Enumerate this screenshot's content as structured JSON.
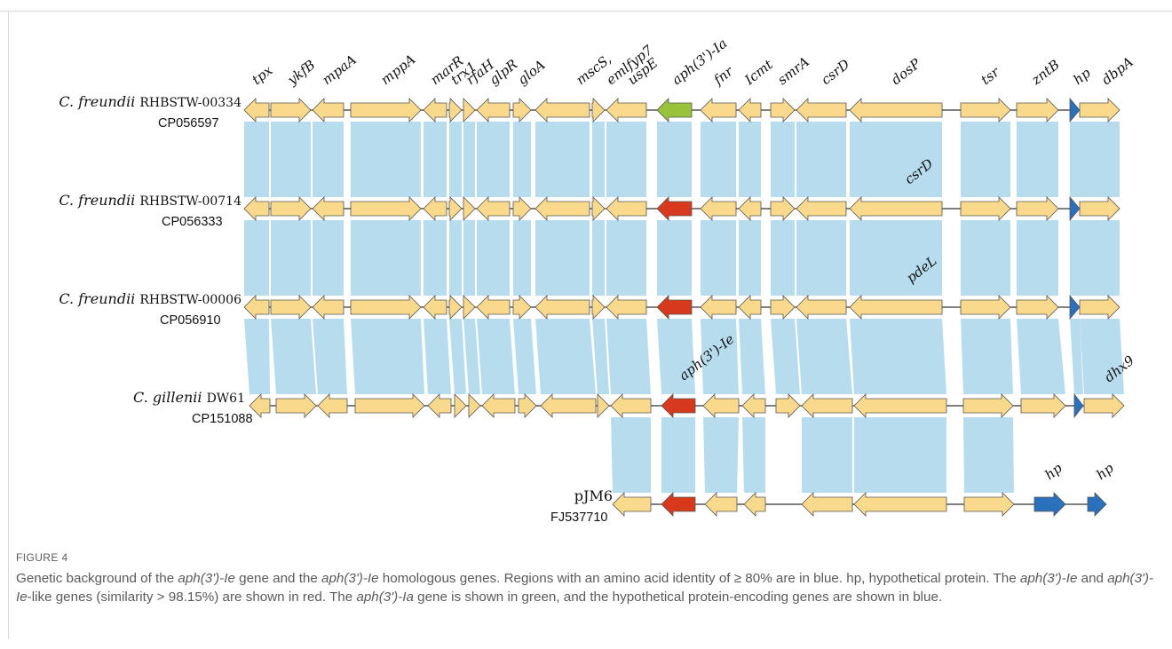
{
  "colors": {
    "gene": "#f9d98b",
    "gene_stroke": "#555555",
    "green": "#97c23a",
    "red": "#d7391c",
    "blue": "#2b70bd",
    "band": "#b7dcee"
  },
  "tracks": [
    {
      "species": "C. freundii",
      "strain": "RHBSTW-00334",
      "accession": "CP056597"
    },
    {
      "species": "C. freundii",
      "strain": "RHBSTW-00714",
      "accession": "CP056333"
    },
    {
      "species": "C. freundii",
      "strain": "RHBSTW-00006",
      "accession": "CP056910"
    },
    {
      "species": "C. gillenii",
      "strain": "DW61",
      "accession": "CP151088"
    },
    {
      "species": "",
      "strain": "pJM6",
      "accession": "FJ537710"
    }
  ],
  "gene_labels": {
    "tpx": "tpx",
    "ykfB": "ykfB",
    "mpaA": "mpaA",
    "mppA": "mppA",
    "marR": "marR",
    "trx1": "trx1",
    "rfaH": "rfaH",
    "glpR": "glpR",
    "gloA": "gloA",
    "mscS": "mscS,",
    "emlfyp7": "emlfyp7",
    "uspE": "uspE",
    "aph_ia": "aph(3')-Ia",
    "fnr": "fnr",
    "lcmt": "Icmt",
    "smrA": "smrA",
    "csrD": "csrD",
    "dosP": "dosP",
    "tsr": "tsr",
    "zntB": "zntB",
    "hp": "hp",
    "dbpA": "dbpA",
    "csrD2": "csrD",
    "pdeL": "pdeL",
    "aph_ie": "aph(3')-Ie",
    "dhx9": "dhx9",
    "hp_a": "hp",
    "hp_b": "hp"
  },
  "caption": {
    "label": "FIGURE 4",
    "p1": "Genetic background of the ",
    "g1": "aph(3')-Ie",
    "p2": " gene and the ",
    "g2": "aph(3')-Ie",
    "p3": " homologous genes. Regions with an amino acid identity of ≥ 80% are in blue. hp, hypothetical protein. The ",
    "g3": "aph(3')-Ie",
    "p4": " and ",
    "g4": "aph(3')-Ie",
    "p5": "-like genes (similarity > 98.15%) are shown in red. The ",
    "g5": "aph(3')-Ia",
    "p6": " gene is shown in green, and the hypothetical protein-encoding genes are shown in blue."
  }
}
